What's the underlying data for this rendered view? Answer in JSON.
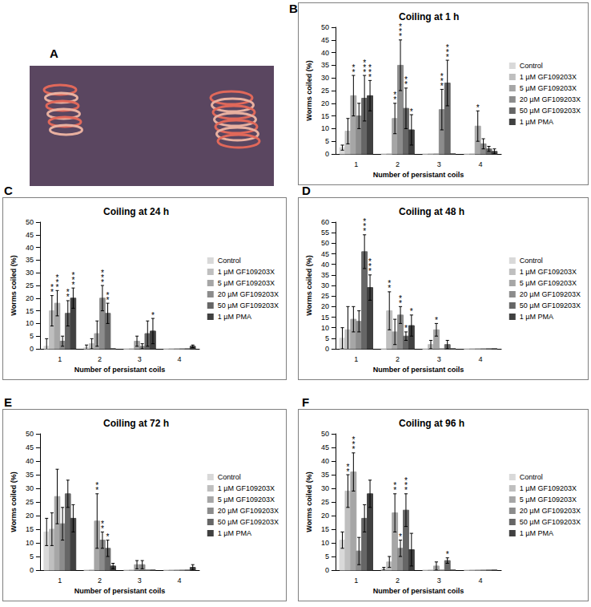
{
  "photo_panel": {
    "panel": "A"
  },
  "chart_data": [
    {
      "panel": "B",
      "type": "bar",
      "title": "Coiling at 1 h",
      "x_label": "Number of persistant coils",
      "y_label": "Worms coiled (%)",
      "categories": [
        "1",
        "2",
        "3",
        "4"
      ],
      "ylim": [
        0,
        50
      ],
      "yticks": [
        0,
        5,
        10,
        15,
        20,
        25,
        30,
        35,
        40,
        45,
        50
      ],
      "grid": false,
      "legend": "right",
      "series": [
        {
          "name": "Control",
          "color": "#d9d9d9",
          "values": [
            2.5,
            0,
            0,
            0
          ],
          "errors": [
            1,
            0,
            0,
            0
          ],
          "significance": [
            null,
            null,
            null,
            null
          ]
        },
        {
          "name": "1 µM GF109203X",
          "color": "#bfbfbf",
          "values": [
            9,
            0,
            0,
            0
          ],
          "errors": [
            5,
            0,
            0,
            0
          ],
          "significance": [
            null,
            null,
            null,
            null
          ]
        },
        {
          "name": "5 µM GF109203X",
          "color": "#a6a6a6",
          "values": [
            23,
            14,
            0,
            11
          ],
          "errors": [
            8,
            6,
            0,
            6
          ],
          "significance": [
            "**",
            "**",
            null,
            "*"
          ]
        },
        {
          "name": "20 µM GF109203X",
          "color": "#8c8c8c",
          "values": [
            15,
            35,
            17.5,
            4
          ],
          "errors": [
            5,
            10,
            8,
            2
          ],
          "significance": [
            null,
            "***",
            "***",
            null
          ]
        },
        {
          "name": "50 µM GF109203X",
          "color": "#666666",
          "values": [
            22,
            18,
            28,
            2
          ],
          "errors": [
            9,
            8,
            9,
            1
          ],
          "significance": [
            "***",
            "**",
            "***",
            null
          ]
        },
        {
          "name": "1 µM PMA",
          "color": "#404040",
          "values": [
            23,
            9.5,
            0,
            1
          ],
          "errors": [
            6,
            6,
            0,
            1
          ],
          "significance": [
            "***",
            "*",
            null,
            null
          ]
        }
      ]
    },
    {
      "panel": "C",
      "type": "bar",
      "title": "Coiling at 24 h",
      "x_label": "Number of persistant coils",
      "y_label": "Worms coiled (%)",
      "categories": [
        "1",
        "2",
        "3",
        "4"
      ],
      "ylim": [
        0,
        50
      ],
      "yticks": [
        0,
        5,
        10,
        15,
        20,
        25,
        30,
        35,
        40,
        45,
        50
      ],
      "grid": false,
      "legend": "right",
      "series": [
        {
          "name": "Control",
          "color": "#d9d9d9",
          "values": [
            1,
            0.5,
            0,
            0
          ],
          "errors": [
            3,
            1,
            0,
            0
          ],
          "significance": [
            null,
            null,
            null,
            null
          ]
        },
        {
          "name": "1 µM GF109203X",
          "color": "#bfbfbf",
          "values": [
            15,
            2,
            0,
            0
          ],
          "errors": [
            6,
            2,
            0,
            0
          ],
          "significance": [
            "**",
            null,
            null,
            null
          ]
        },
        {
          "name": "5 µM GF109203X",
          "color": "#a6a6a6",
          "values": [
            18,
            6,
            3,
            0
          ],
          "errors": [
            5,
            5,
            2,
            0
          ],
          "significance": [
            "***",
            null,
            null,
            null
          ]
        },
        {
          "name": "20 µM GF109203X",
          "color": "#8c8c8c",
          "values": [
            3,
            20,
            1,
            0
          ],
          "errors": [
            2,
            5,
            1,
            0
          ],
          "significance": [
            null,
            "***",
            null,
            null
          ]
        },
        {
          "name": "50 µM GF109203X",
          "color": "#666666",
          "values": [
            14,
            14,
            6,
            0
          ],
          "errors": [
            5,
            4,
            5,
            0
          ],
          "significance": [
            "**",
            "**",
            null,
            null
          ]
        },
        {
          "name": "1 µM PMA",
          "color": "#404040",
          "values": [
            20,
            0,
            7,
            1
          ],
          "errors": [
            4,
            0,
            5,
            0.5
          ],
          "significance": [
            "***",
            null,
            "*",
            null
          ]
        }
      ]
    },
    {
      "panel": "D",
      "type": "bar",
      "title": "Coiling at 48 h",
      "x_label": "Number of persistant coils",
      "y_label": "Worms coiled (%)",
      "categories": [
        "1",
        "2",
        "3",
        "4"
      ],
      "ylim": [
        0,
        60
      ],
      "yticks": [
        0,
        5,
        10,
        15,
        20,
        25,
        30,
        35,
        40,
        45,
        50,
        55,
        60
      ],
      "grid": false,
      "legend": "right",
      "series": [
        {
          "name": "Control",
          "color": "#d9d9d9",
          "values": [
            5,
            0,
            0,
            0
          ],
          "errors": [
            5,
            0,
            0,
            0
          ],
          "significance": [
            null,
            null,
            null,
            null
          ]
        },
        {
          "name": "1 µM GF109203X",
          "color": "#bfbfbf",
          "values": [
            9,
            18,
            2,
            0
          ],
          "errors": [
            11,
            9,
            2,
            0
          ],
          "significance": [
            null,
            "**",
            null,
            null
          ]
        },
        {
          "name": "5 µM GF109203X",
          "color": "#a6a6a6",
          "values": [
            14,
            8,
            9,
            0
          ],
          "errors": [
            6,
            6,
            3,
            0
          ],
          "significance": [
            null,
            null,
            "*",
            null
          ]
        },
        {
          "name": "20 µM GF109203X",
          "color": "#8c8c8c",
          "values": [
            13,
            16,
            0,
            0
          ],
          "errors": [
            5,
            4,
            0,
            0
          ],
          "significance": [
            null,
            "**",
            null,
            null
          ]
        },
        {
          "name": "50 µM GF109203X",
          "color": "#666666",
          "values": [
            46,
            6,
            2,
            0
          ],
          "errors": [
            8,
            2,
            2,
            0
          ],
          "significance": [
            "***",
            "*",
            null,
            null
          ]
        },
        {
          "name": "1 µM PMA",
          "color": "#404040",
          "values": [
            29,
            11,
            0,
            0
          ],
          "errors": [
            6,
            5,
            0,
            0
          ],
          "significance": [
            "***",
            "*",
            null,
            null
          ]
        }
      ]
    },
    {
      "panel": "E",
      "type": "bar",
      "title": "Coiling at 72 h",
      "x_label": "Number of persistant coils",
      "y_label": "Worms coiled (%)",
      "categories": [
        "1",
        "2",
        "3",
        "4"
      ],
      "ylim": [
        0,
        50
      ],
      "yticks": [
        0,
        5,
        10,
        15,
        20,
        25,
        30,
        35,
        40,
        45,
        50
      ],
      "grid": false,
      "legend": "right",
      "series": [
        {
          "name": "Control",
          "color": "#d9d9d9",
          "values": [
            14,
            0,
            0,
            0
          ],
          "errors": [
            5,
            0,
            0,
            0
          ],
          "significance": [
            null,
            null,
            null,
            null
          ]
        },
        {
          "name": "1 µM GF109203X",
          "color": "#bfbfbf",
          "values": [
            15,
            0,
            0,
            0
          ],
          "errors": [
            6,
            0,
            0,
            0
          ],
          "significance": [
            null,
            null,
            null,
            null
          ]
        },
        {
          "name": "5 µM GF109203X",
          "color": "#a6a6a6",
          "values": [
            27,
            18,
            2,
            0
          ],
          "errors": [
            10,
            10,
            1.5,
            0
          ],
          "significance": [
            null,
            "**",
            null,
            null
          ]
        },
        {
          "name": "20 µM GF109203X",
          "color": "#8c8c8c",
          "values": [
            17,
            11,
            2,
            0
          ],
          "errors": [
            6,
            3,
            1.5,
            0
          ],
          "significance": [
            null,
            "**",
            null,
            null
          ]
        },
        {
          "name": "50 µM GF109203X",
          "color": "#666666",
          "values": [
            28,
            8,
            0,
            0
          ],
          "errors": [
            5,
            3,
            0,
            0
          ],
          "significance": [
            null,
            "*",
            null,
            null
          ]
        },
        {
          "name": "1 µM PMA",
          "color": "#404040",
          "values": [
            19,
            1.5,
            0,
            1
          ],
          "errors": [
            5,
            1,
            0,
            1
          ],
          "significance": [
            null,
            null,
            null,
            null
          ]
        }
      ]
    },
    {
      "panel": "F",
      "type": "bar",
      "title": "Coiling at 96 h",
      "x_label": "Number of persistant coils",
      "y_label": "Worms coiled (%)",
      "categories": [
        "1",
        "2",
        "3",
        "4"
      ],
      "ylim": [
        0,
        50
      ],
      "yticks": [
        0,
        5,
        10,
        15,
        20,
        25,
        30,
        35,
        40,
        45,
        50
      ],
      "grid": false,
      "legend": "right",
      "series": [
        {
          "name": "Control",
          "color": "#d9d9d9",
          "values": [
            11,
            0.5,
            0,
            0
          ],
          "errors": [
            3,
            0.5,
            0,
            0
          ],
          "significance": [
            null,
            null,
            null,
            null
          ]
        },
        {
          "name": "1 µM GF109203X",
          "color": "#bfbfbf",
          "values": [
            29,
            3,
            0,
            0
          ],
          "errors": [
            6,
            2,
            0,
            0
          ],
          "significance": [
            "**",
            null,
            null,
            null
          ]
        },
        {
          "name": "5 µM GF109203X",
          "color": "#a6a6a6",
          "values": [
            36,
            21,
            1.5,
            0
          ],
          "errors": [
            7,
            7,
            1.5,
            0
          ],
          "significance": [
            "***",
            "**",
            null,
            null
          ]
        },
        {
          "name": "20 µM GF109203X",
          "color": "#8c8c8c",
          "values": [
            7,
            8,
            0,
            0
          ],
          "errors": [
            5,
            3,
            0,
            0
          ],
          "significance": [
            null,
            "*",
            null,
            null
          ]
        },
        {
          "name": "50 µM GF109203X",
          "color": "#666666",
          "values": [
            19,
            22,
            3.5,
            0
          ],
          "errors": [
            5,
            6,
            1,
            0
          ],
          "significance": [
            null,
            "***",
            "*",
            null
          ]
        },
        {
          "name": "1 µM PMA",
          "color": "#404040",
          "values": [
            28,
            7.5,
            0,
            0
          ],
          "errors": [
            5,
            6,
            0,
            0
          ],
          "significance": [
            null,
            null,
            null,
            null
          ]
        }
      ]
    }
  ]
}
